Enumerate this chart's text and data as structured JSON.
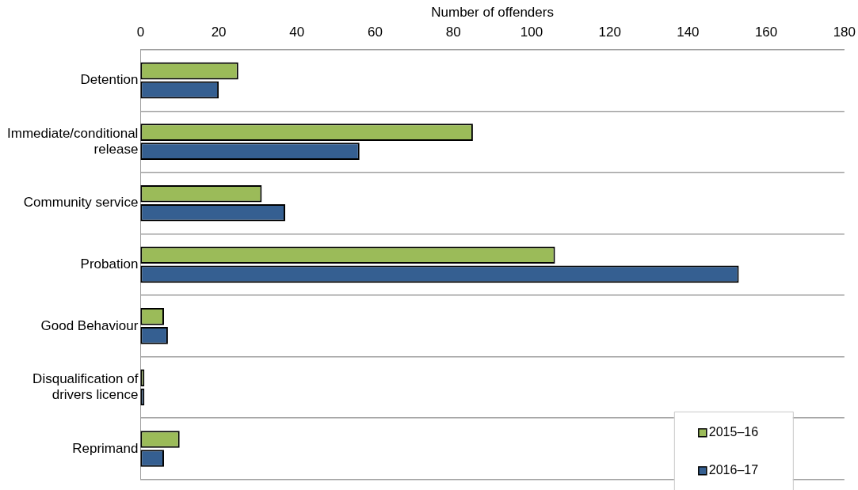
{
  "chart_data": {
    "type": "bar",
    "orientation": "horizontal",
    "xlabel": "Number of offenders",
    "categories": [
      "Detention",
      "Immediate/conditional release",
      "Community service",
      "Probation",
      "Good Behaviour",
      "Disqualification of drivers licence",
      "Reprimand"
    ],
    "series": [
      {
        "name": "2015–16",
        "color": "#9bbb59",
        "values": [
          25,
          85,
          31,
          106,
          6,
          1,
          10
        ]
      },
      {
        "name": "2016–17",
        "color": "#355f91",
        "values": [
          20,
          56,
          37,
          153,
          7,
          1,
          6
        ]
      }
    ],
    "xlim": [
      0,
      180
    ],
    "xticks": [
      0,
      20,
      40,
      60,
      80,
      100,
      120,
      140,
      160,
      180
    ],
    "grid": "y",
    "legend": "bottom right"
  }
}
